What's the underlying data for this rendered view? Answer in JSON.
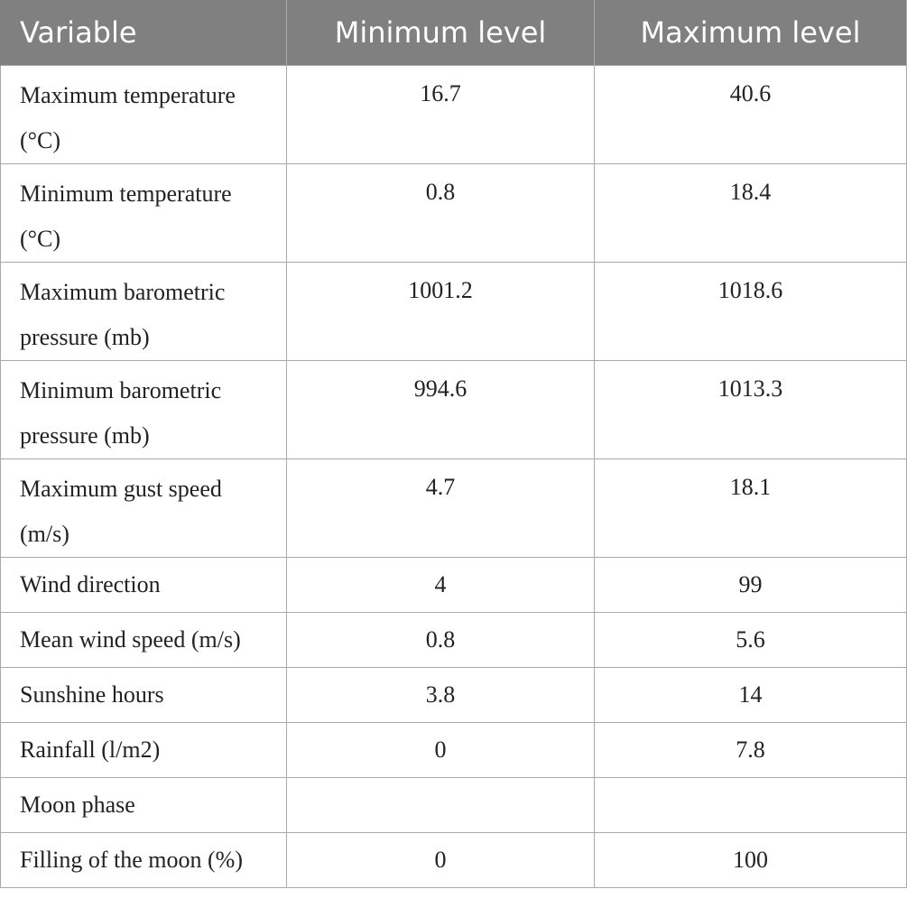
{
  "table": {
    "headers": [
      "Variable",
      "Minimum level",
      "Maximum level"
    ],
    "rows": [
      {
        "variable": "Maximum temperature (°C)",
        "min": "16.7",
        "max": "40.6"
      },
      {
        "variable": "Minimum temperature (°C)",
        "min": "0.8",
        "max": "18.4"
      },
      {
        "variable": "Maximum barometric pressure (mb)",
        "min": "1001.2",
        "max": "1018.6"
      },
      {
        "variable": "Minimum barometric pressure (mb)",
        "min": "994.6",
        "max": "1013.3"
      },
      {
        "variable": "Maximum gust speed (m/s)",
        "min": "4.7",
        "max": "18.1"
      },
      {
        "variable": "Wind direction",
        "min": "4",
        "max": "99"
      },
      {
        "variable": "Mean wind speed (m/s)",
        "min": "0.8",
        "max": "5.6"
      },
      {
        "variable": "Sunshine hours",
        "min": "3.8",
        "max": "14"
      },
      {
        "variable": "Rainfall (l/m2)",
        "min": "0",
        "max": "7.8"
      },
      {
        "variable": "Moon phase",
        "min": "",
        "max": ""
      },
      {
        "variable": "Filling of the moon (%)",
        "min": "0",
        "max": "100"
      }
    ]
  },
  "colors": {
    "header_bg": "#7f807f",
    "header_text": "#ffffff",
    "border": "#a9a9a9"
  }
}
